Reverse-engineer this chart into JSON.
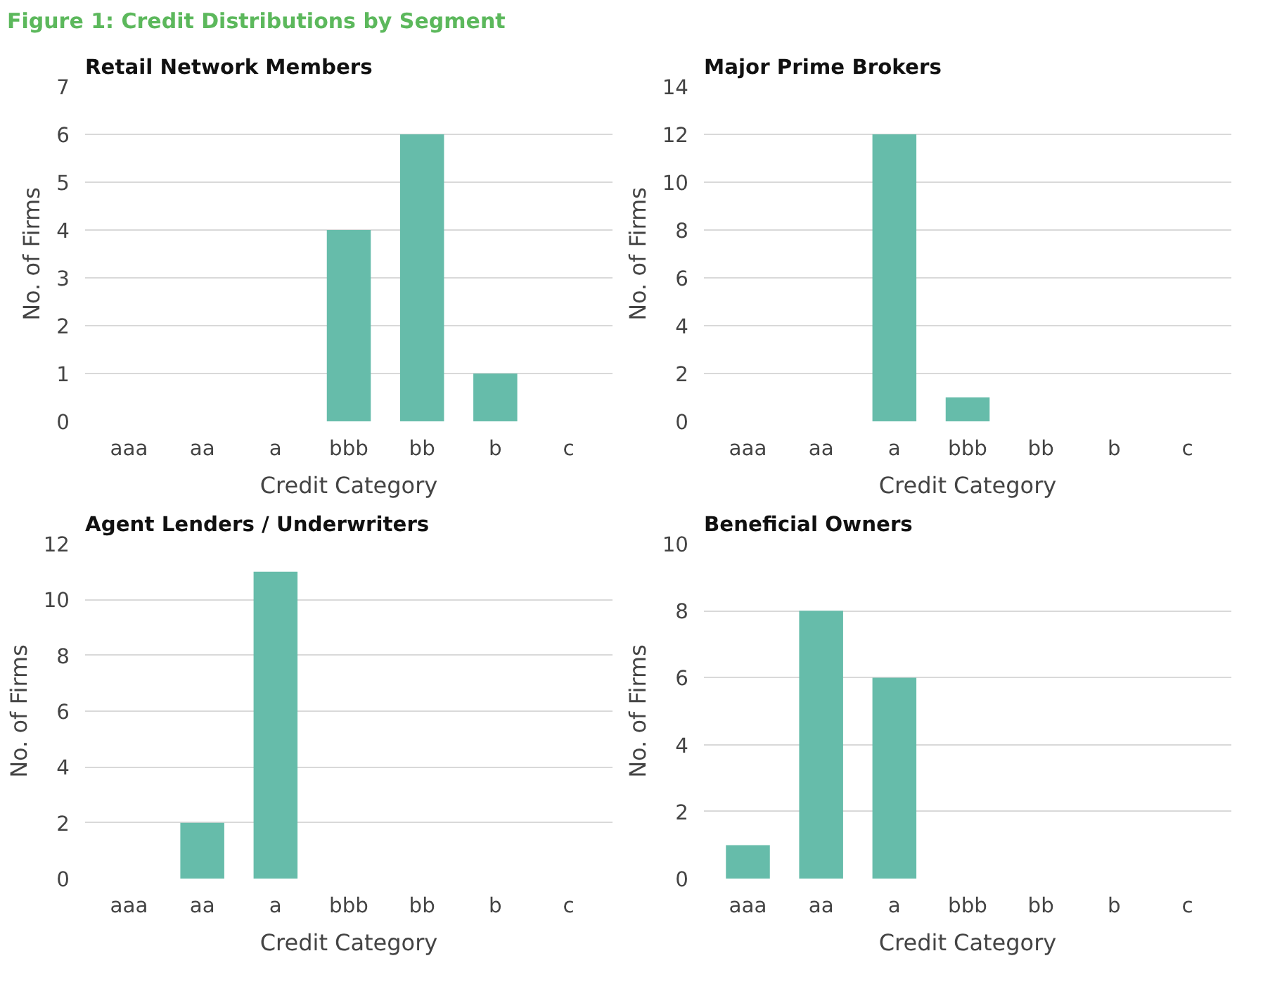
{
  "chart_data": [
    {
      "type": "bar",
      "title": "Retail Network Members",
      "xlabel": "Credit Category",
      "ylabel": "No. of Firms",
      "categories": [
        "aaa",
        "aa",
        "a",
        "bbb",
        "bb",
        "b",
        "c"
      ],
      "values": [
        0,
        0,
        0,
        4,
        6,
        1,
        0
      ],
      "color": "#66bcaa",
      "ylim": [
        0,
        7
      ],
      "yticks": [
        0,
        1,
        2,
        3,
        4,
        5,
        6,
        7
      ],
      "grid": "y",
      "annotations": [
        "Figure 1: Credit Distributions by Segment"
      ]
    },
    {
      "type": "bar",
      "title": "Major Prime Brokers",
      "xlabel": "Credit Category",
      "ylabel": "No. of Firms",
      "categories": [
        "aaa",
        "aa",
        "a",
        "bbb",
        "bb",
        "b",
        "c"
      ],
      "values": [
        0,
        0,
        12,
        1,
        0,
        0,
        0
      ],
      "color": "#66bcaa",
      "ylim": [
        0,
        14
      ],
      "yticks": [
        0,
        2,
        4,
        6,
        8,
        10,
        12,
        14
      ],
      "grid": "y"
    },
    {
      "type": "bar",
      "title": "Agent Lenders / Underwriters",
      "xlabel": "Credit Category",
      "ylabel": "No. of Firms",
      "categories": [
        "aaa",
        "aa",
        "a",
        "bbb",
        "bb",
        "b",
        "c"
      ],
      "values": [
        0,
        2,
        11,
        0,
        0,
        0,
        0
      ],
      "color": "#66bcaa",
      "ylim": [
        0,
        12
      ],
      "yticks": [
        0,
        2,
        4,
        6,
        8,
        10,
        12
      ],
      "grid": "y"
    },
    {
      "type": "bar",
      "title": "Beneficial Owners",
      "xlabel": "Credit Category",
      "ylabel": "No. of Firms",
      "categories": [
        "aaa",
        "aa",
        "a",
        "bbb",
        "bb",
        "b",
        "c"
      ],
      "values": [
        1,
        8,
        6,
        0,
        0,
        0,
        0
      ],
      "color": "#66bcaa",
      "ylim": [
        0,
        10
      ],
      "yticks": [
        0,
        2,
        4,
        6,
        8,
        10
      ],
      "grid": "y"
    }
  ]
}
